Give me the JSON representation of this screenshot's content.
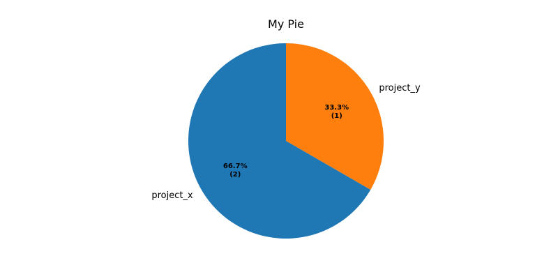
{
  "chart_data": {
    "type": "pie",
    "title": "My Pie",
    "slices": [
      {
        "label": "project_y",
        "value": 1,
        "percent": "33.3%",
        "count_label": "(1)",
        "color": "#ff7f0e"
      },
      {
        "label": "project_x",
        "value": 2,
        "percent": "66.7%",
        "count_label": "(2)",
        "color": "#1f77b4"
      }
    ],
    "start": "top",
    "direction": "clockwise"
  }
}
